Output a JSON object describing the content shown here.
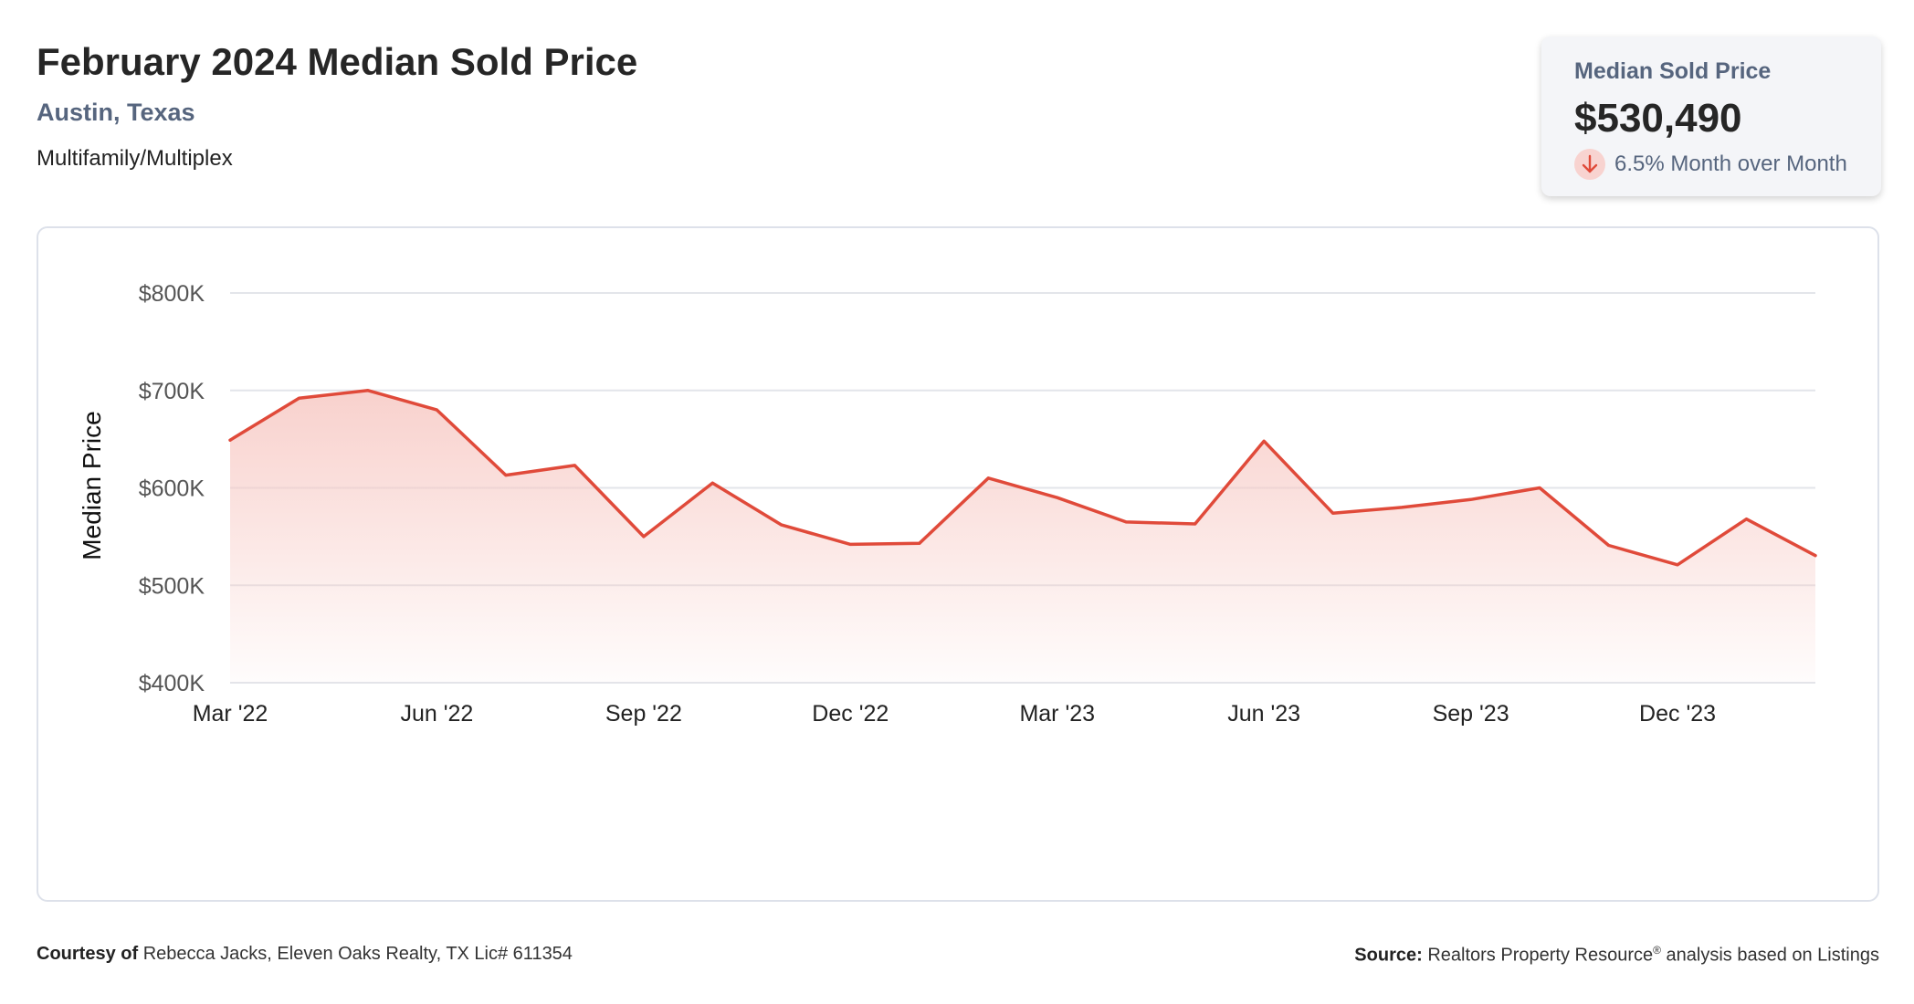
{
  "header": {
    "title": "February 2024 Median Sold Price",
    "location": "Austin, Texas",
    "property_type": "Multifamily/Multiplex"
  },
  "stat_card": {
    "label": "Median Sold Price",
    "value": "$530,490",
    "change": "6.5% Month over Month",
    "direction_icon": "arrow-down-icon",
    "change_color": "#e04a3a"
  },
  "footer": {
    "courtesy_label": "Courtesy of",
    "courtesy_text": "Rebecca Jacks, Eleven Oaks Realty, TX Lic# 611354",
    "source_label": "Source:",
    "source_text": "Realtors Property Resource",
    "source_mark": "®",
    "source_suffix": "analysis based on Listings"
  },
  "colors": {
    "line": "#e04a3a",
    "area": "#f7c9c4",
    "grid": "#e3e5ea",
    "stat_label": "#56657e"
  },
  "chart_data": {
    "type": "area",
    "title": "February 2024 Median Sold Price",
    "xlabel": "",
    "ylabel": "Median Price",
    "grid": true,
    "ylim": [
      400000,
      800000
    ],
    "y_ticks": [
      400000,
      500000,
      600000,
      700000,
      800000
    ],
    "y_tick_labels": [
      "$400K",
      "$500K",
      "$600K",
      "$700K",
      "$800K"
    ],
    "x": [
      "Mar '22",
      "Apr '22",
      "May '22",
      "Jun '22",
      "Jul '22",
      "Aug '22",
      "Sep '22",
      "Oct '22",
      "Nov '22",
      "Dec '22",
      "Jan '23",
      "Feb '23",
      "Mar '23",
      "Apr '23",
      "May '23",
      "Jun '23",
      "Jul '23",
      "Aug '23",
      "Sep '23",
      "Oct '23",
      "Nov '23",
      "Dec '23",
      "Jan '24",
      "Feb '24"
    ],
    "x_tick_labels": [
      "Mar '22",
      "Jun '22",
      "Sep '22",
      "Dec '22",
      "Mar '23",
      "Jun '23",
      "Sep '23",
      "Dec '23"
    ],
    "series": [
      {
        "values": [
          649000,
          692000,
          700000,
          680000,
          613000,
          623000,
          550000,
          605000,
          562000,
          542000,
          543000,
          610000,
          590000,
          565000,
          563000,
          648000,
          574000,
          580000,
          588000,
          600000,
          541000,
          521000,
          568000,
          530490
        ]
      }
    ]
  }
}
